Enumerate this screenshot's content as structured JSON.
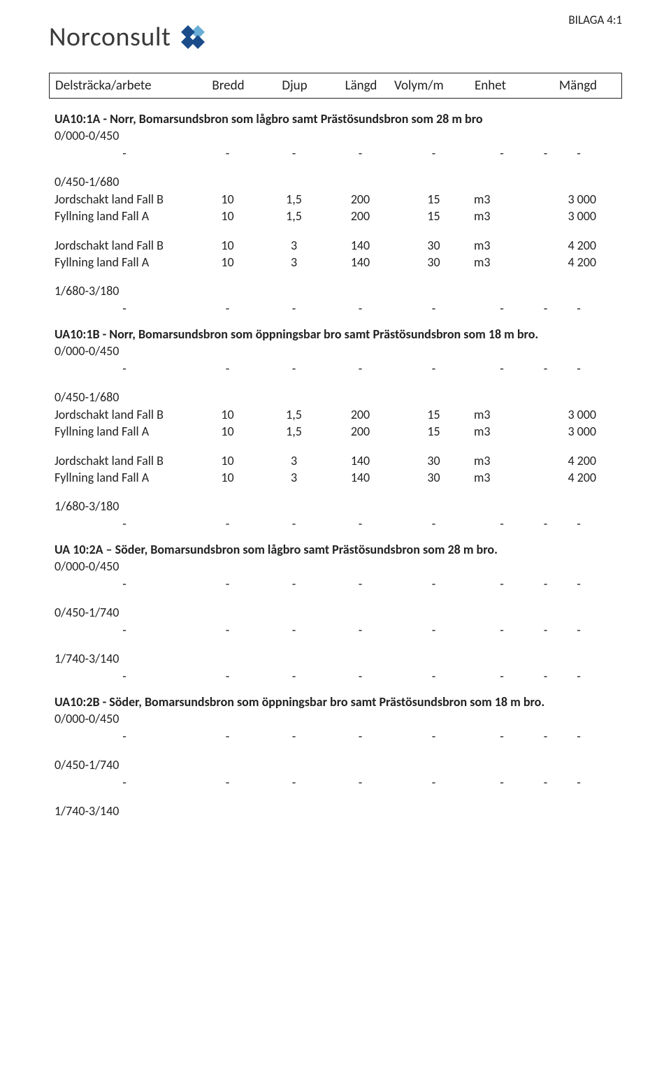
{
  "header": {
    "bilaga": "BILAGA 4:1",
    "logo_text": "Norconsult",
    "logo_colors": {
      "light": "#6aaed6",
      "dark": "#1a4c8a"
    }
  },
  "table_header": {
    "c1": "Delsträcka/arbete",
    "c2": "Bredd",
    "c3": "Djup",
    "c4": "Längd",
    "c5": "Volym/m",
    "c6": "Enhet",
    "c7": "Mängd"
  },
  "sections": [
    {
      "title": "UA10:1A - Norr, Bomarsundsbron som lågbro samt Prästösundsbron som 28 m bro",
      "groups": [
        {
          "sub": "0/000-0/450",
          "rows": [
            {
              "dash": true
            }
          ]
        },
        {
          "sub": "0/450-1/680",
          "gap": true,
          "rows": [
            {
              "label": "Jordschakt land Fall B",
              "bredd": "10",
              "djup": "1,5",
              "langd": "200",
              "volm": "15",
              "enhet": "m3",
              "mangd": "3 000"
            },
            {
              "label": "Fyllning land Fall A",
              "bredd": "10",
              "djup": "1,5",
              "langd": "200",
              "volm": "15",
              "enhet": "m3",
              "mangd": "3 000"
            },
            {
              "spacer": true
            },
            {
              "label": "Jordschakt land Fall B",
              "bredd": "10",
              "djup": "3",
              "langd": "140",
              "volm": "30",
              "enhet": "m3",
              "mangd": "4 200"
            },
            {
              "label": "Fyllning land Fall A",
              "bredd": "10",
              "djup": "3",
              "langd": "140",
              "volm": "30",
              "enhet": "m3",
              "mangd": "4 200"
            }
          ]
        },
        {
          "sub": "1/680-3/180",
          "gap": true,
          "rows": [
            {
              "dash": true
            }
          ]
        }
      ]
    },
    {
      "title": "UA10:1B - Norr, Bomarsundsbron som öppningsbar bro samt Prästösundsbron som 18 m bro.",
      "groups": [
        {
          "sub": "0/000-0/450",
          "rows": [
            {
              "dash": true
            }
          ]
        },
        {
          "sub": "0/450-1/680",
          "gap": true,
          "rows": [
            {
              "label": "Jordschakt land Fall B",
              "bredd": "10",
              "djup": "1,5",
              "langd": "200",
              "volm": "15",
              "enhet": "m3",
              "mangd": "3 000"
            },
            {
              "label": "Fyllning land Fall A",
              "bredd": "10",
              "djup": "1,5",
              "langd": "200",
              "volm": "15",
              "enhet": "m3",
              "mangd": "3 000"
            },
            {
              "spacer": true
            },
            {
              "label": "Jordschakt land Fall B",
              "bredd": "10",
              "djup": "3",
              "langd": "140",
              "volm": "30",
              "enhet": "m3",
              "mangd": "4 200"
            },
            {
              "label": "Fyllning land Fall A",
              "bredd": "10",
              "djup": "3",
              "langd": "140",
              "volm": "30",
              "enhet": "m3",
              "mangd": "4 200"
            }
          ]
        },
        {
          "sub": "1/680-3/180",
          "gap": true,
          "rows": [
            {
              "dash": true
            }
          ]
        }
      ]
    },
    {
      "title": "UA 10:2A – Söder, Bomarsundsbron som lågbro samt Prästösundsbron som 28 m bro.",
      "groups": [
        {
          "sub": "0/000-0/450",
          "rows": [
            {
              "dash": true
            }
          ]
        },
        {
          "sub": "0/450-1/740",
          "gap": true,
          "rows": [
            {
              "dash": true
            }
          ]
        },
        {
          "sub": "1/740-3/140",
          "gap": true,
          "rows": [
            {
              "dash": true
            }
          ]
        }
      ]
    },
    {
      "title": "UA10:2B - Söder, Bomarsundsbron som öppningsbar bro samt Prästösundsbron som 18 m bro.",
      "groups": [
        {
          "sub": "0/000-0/450",
          "rows": [
            {
              "dash": true
            }
          ]
        },
        {
          "sub": "0/450-1/740",
          "gap": true,
          "rows": [
            {
              "dash": true
            }
          ]
        },
        {
          "sub": "1/740-3/140",
          "gap": true,
          "rows": []
        }
      ]
    }
  ]
}
